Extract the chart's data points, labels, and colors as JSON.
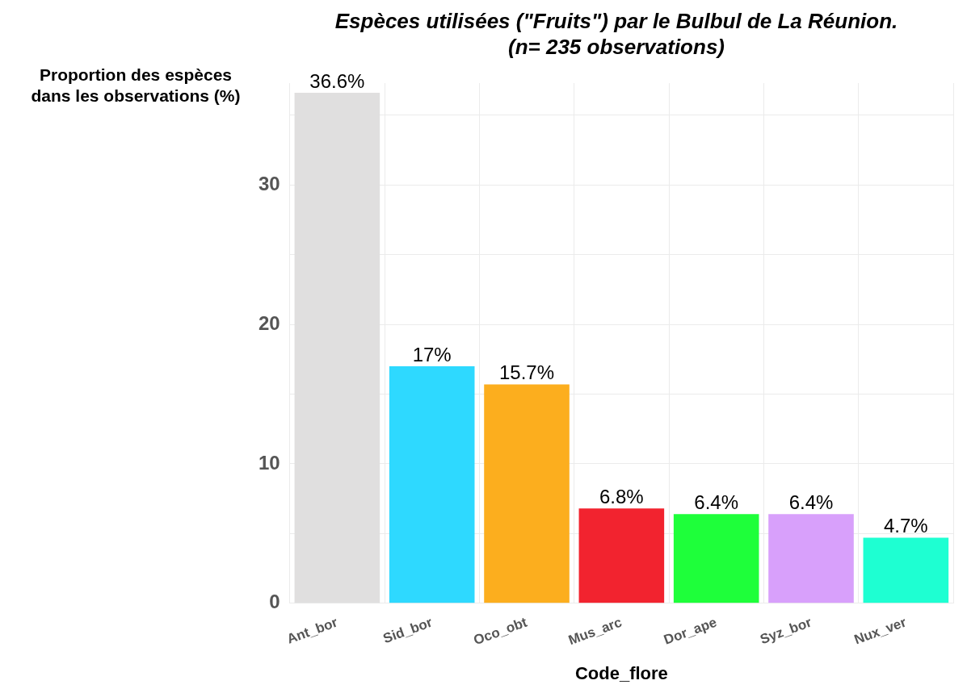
{
  "chart_data": {
    "type": "bar",
    "title": "Espèces utilisées (\"Fruits\") par le Bulbul de La Réunion.\n(n= 235 observations)",
    "xlabel": "Code_flore",
    "ylabel": "Proportion des espèces\ndans les observations (%)",
    "categories": [
      "Ant_bor",
      "Sid_bor",
      "Oco_obt",
      "Mus_arc",
      "Dor_ape",
      "Syz_bor",
      "Nux_ver"
    ],
    "values": [
      36.6,
      17,
      15.7,
      6.8,
      6.4,
      6.4,
      4.7
    ],
    "colors": [
      "#e0dfdf",
      "#2ed9ff",
      "#fcae1e",
      "#f2232f",
      "#1eff3a",
      "#d8a0fb",
      "#1effd2"
    ],
    "value_labels": [
      "36.6%",
      "17%",
      "15.7%",
      "6.8%",
      "6.4%",
      "6.4%",
      "4.7%"
    ],
    "ylim": [
      0,
      37.3
    ],
    "yticks": [
      0,
      {
        "value": 5,
        "label": null
      },
      10,
      {
        "value": 15,
        "label": null
      },
      20,
      {
        "value": 25,
        "label": null
      },
      30,
      {
        "value": 35,
        "label": null
      }
    ],
    "grid": true,
    "legend": false
  }
}
